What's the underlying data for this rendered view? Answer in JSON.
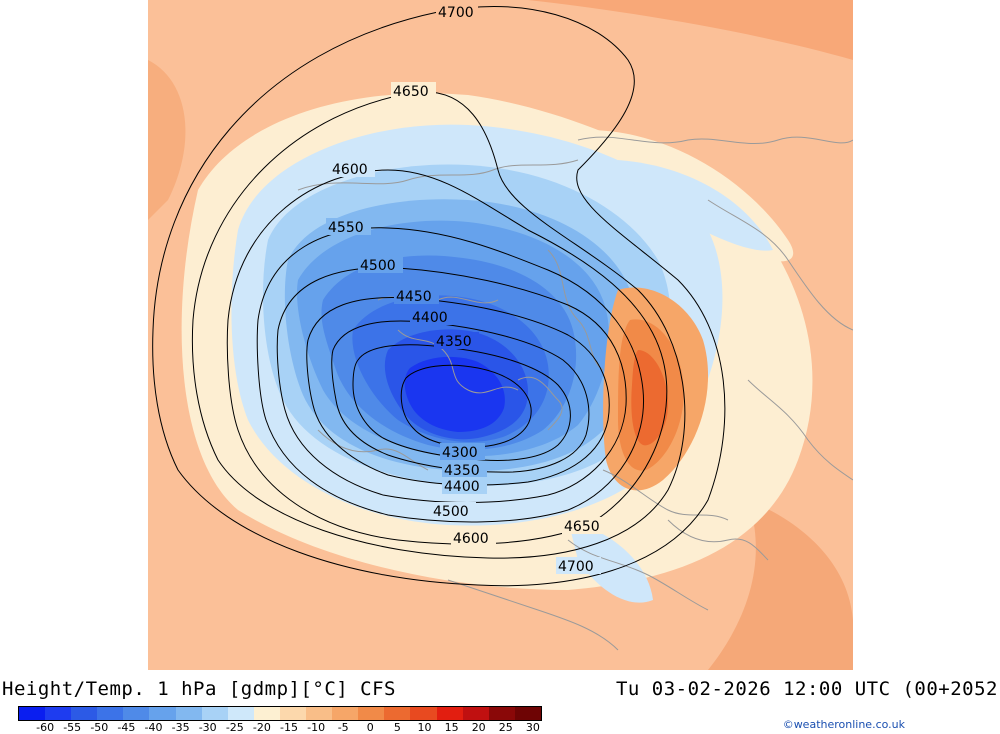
{
  "map": {
    "contour_labels": [
      "4700",
      "4650",
      "4600",
      "4550",
      "4500",
      "4450",
      "4400",
      "4350",
      "4300",
      "4350",
      "4400",
      "4500",
      "4600",
      "4650",
      "4700"
    ]
  },
  "footer": {
    "title": "Height/Temp. 1 hPa [gdmp][°C] CFS",
    "valid_time": "Tu 03-02-2026 12:00 UTC (00+2052",
    "credit": "©weatheronline.co.uk"
  },
  "legend": {
    "ticks": [
      "-60",
      "-55",
      "-50",
      "-45",
      "-40",
      "-35",
      "-30",
      "-25",
      "-20",
      "-15",
      "-10",
      "-5",
      "0",
      "5",
      "10",
      "15",
      "20",
      "25",
      "30"
    ],
    "colors": [
      "#0a1ef0",
      "#1e3cf0",
      "#2c5ae6",
      "#3c73e8",
      "#4f8ae8",
      "#66a2ec",
      "#82b8f0",
      "#a8d2f6",
      "#cfe8fa",
      "#fdf0d2",
      "#fcd8ac",
      "#f9be88",
      "#f6a668",
      "#f18a48",
      "#ec6a30",
      "#e84a20",
      "#e21e10",
      "#c01010",
      "#8a0808",
      "#6e0404"
    ]
  },
  "colors": {
    "background_warm": "#fbbe92",
    "cold_core": "#1e40f0",
    "contour": "#000000",
    "coastline": "#9a9a9a"
  }
}
